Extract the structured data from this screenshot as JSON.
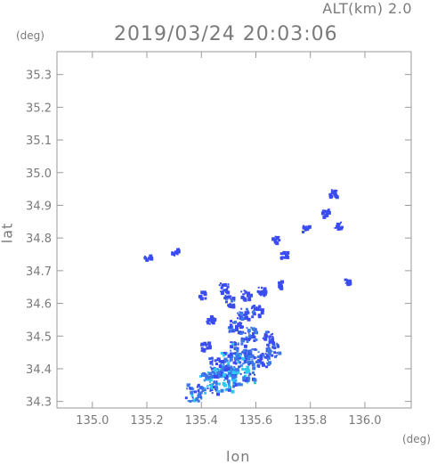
{
  "header": {
    "altitude": "ALT(km) 2.0",
    "timestamp": "2019/03/24 20:03:06"
  },
  "chart_data": {
    "type": "heatmap",
    "title": "2019/03/24 20:03:06",
    "xlabel": "lon",
    "ylabel": "lat",
    "x_unit": "(deg)",
    "y_unit": "(deg)",
    "xlim": [
      134.87,
      136.17
    ],
    "ylim": [
      34.28,
      35.37
    ],
    "x_ticks": [
      {
        "value": 135.0,
        "label": "135.0"
      },
      {
        "value": 135.2,
        "label": "135.2"
      },
      {
        "value": 135.4,
        "label": "135.4"
      },
      {
        "value": 135.6,
        "label": "135.6"
      },
      {
        "value": 135.8,
        "label": "135.8"
      },
      {
        "value": 136.0,
        "label": "136.0"
      }
    ],
    "y_ticks": [
      {
        "value": 34.3,
        "label": "34.3"
      },
      {
        "value": 34.4,
        "label": "34.4"
      },
      {
        "value": 34.5,
        "label": "34.5"
      },
      {
        "value": 34.6,
        "label": "34.6"
      },
      {
        "value": 34.7,
        "label": "34.7"
      },
      {
        "value": 34.8,
        "label": "34.8"
      },
      {
        "value": 34.9,
        "label": "34.9"
      },
      {
        "value": 35.0,
        "label": "35.0"
      },
      {
        "value": 35.1,
        "label": "35.1"
      },
      {
        "value": 35.2,
        "label": "35.2"
      },
      {
        "value": 35.3,
        "label": "35.3"
      }
    ],
    "grid": false,
    "colors": {
      "frame": "#9a9a9a",
      "echo_low": "#3a4cf0",
      "echo_mid": "#3b78e8",
      "echo_high": "#2ec8f0"
    },
    "echo_clusters": [
      {
        "lon": 135.37,
        "lat": 34.33,
        "intensity": 0.6
      },
      {
        "lon": 135.43,
        "lat": 34.36,
        "intensity": 0.8
      },
      {
        "lon": 135.48,
        "lat": 34.37,
        "intensity": 0.9
      },
      {
        "lon": 135.46,
        "lat": 34.41,
        "intensity": 0.7
      },
      {
        "lon": 135.5,
        "lat": 34.42,
        "intensity": 0.8
      },
      {
        "lon": 135.55,
        "lat": 34.39,
        "intensity": 0.9
      },
      {
        "lon": 135.53,
        "lat": 34.46,
        "intensity": 0.6
      },
      {
        "lon": 135.58,
        "lat": 34.44,
        "intensity": 0.5
      },
      {
        "lon": 135.62,
        "lat": 34.43,
        "intensity": 0.4
      },
      {
        "lon": 135.66,
        "lat": 34.46,
        "intensity": 0.4
      },
      {
        "lon": 135.64,
        "lat": 34.5,
        "intensity": 0.3
      },
      {
        "lon": 135.57,
        "lat": 34.51,
        "intensity": 0.5
      },
      {
        "lon": 135.52,
        "lat": 34.53,
        "intensity": 0.4
      },
      {
        "lon": 135.55,
        "lat": 34.57,
        "intensity": 0.3
      },
      {
        "lon": 135.6,
        "lat": 34.58,
        "intensity": 0.3
      },
      {
        "lon": 135.5,
        "lat": 34.61,
        "intensity": 0.3
      },
      {
        "lon": 135.56,
        "lat": 34.63,
        "intensity": 0.2
      },
      {
        "lon": 135.62,
        "lat": 34.64,
        "intensity": 0.2
      },
      {
        "lon": 135.48,
        "lat": 34.65,
        "intensity": 0.2
      },
      {
        "lon": 135.4,
        "lat": 34.63,
        "intensity": 0.1
      },
      {
        "lon": 135.68,
        "lat": 34.66,
        "intensity": 0.1
      },
      {
        "lon": 135.43,
        "lat": 34.55,
        "intensity": 0.2
      },
      {
        "lon": 135.41,
        "lat": 34.47,
        "intensity": 0.2
      },
      {
        "lon": 135.3,
        "lat": 34.76,
        "intensity": 0.1
      },
      {
        "lon": 135.67,
        "lat": 34.8,
        "intensity": 0.1
      },
      {
        "lon": 135.7,
        "lat": 34.75,
        "intensity": 0.1
      },
      {
        "lon": 135.85,
        "lat": 34.88,
        "intensity": 0.1
      },
      {
        "lon": 135.88,
        "lat": 34.94,
        "intensity": 0.1
      },
      {
        "lon": 135.9,
        "lat": 34.84,
        "intensity": 0.1
      },
      {
        "lon": 135.78,
        "lat": 34.83,
        "intensity": 0.1
      },
      {
        "lon": 135.93,
        "lat": 34.67,
        "intensity": 0.1
      },
      {
        "lon": 135.2,
        "lat": 34.74,
        "intensity": 0.1
      }
    ]
  }
}
